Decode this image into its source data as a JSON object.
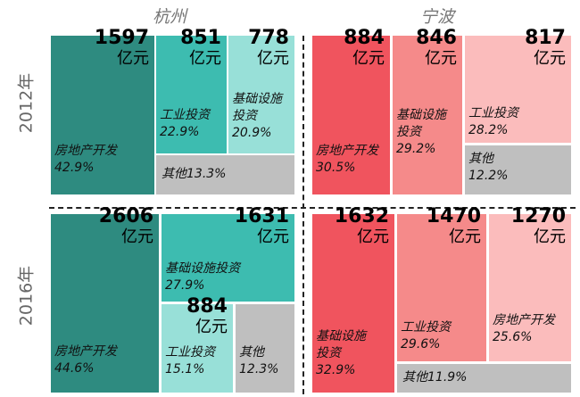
{
  "column_titles": [
    "杭州",
    "宁波"
  ],
  "row_titles": [
    "2012年",
    "2016年"
  ],
  "unit": "亿元",
  "chart_data": [
    {
      "type": "treemap",
      "categories": [
        "房地产开发",
        "工业投资",
        "基础设施投资",
        "其他"
      ],
      "values": [
        1597,
        851,
        778,
        null
      ],
      "shares": [
        42.9,
        22.9,
        20.9,
        13.3
      ],
      "share_labels": [
        "42.9%",
        "22.9%",
        "20.9%",
        "13.3%"
      ],
      "colors": [
        "#2e8b80",
        "#3dbcb0",
        "#98e0d8",
        "#bfbfbf"
      ]
    },
    {
      "type": "treemap",
      "categories": [
        "房地产开发",
        "基础设施投资",
        "工业投资",
        "其他"
      ],
      "values": [
        884,
        846,
        817,
        null
      ],
      "shares": [
        30.5,
        29.2,
        28.2,
        12.2
      ],
      "share_labels": [
        "30.5%",
        "29.2%",
        "28.2%",
        "12.2%"
      ],
      "colors": [
        "#f0545e",
        "#f58a8a",
        "#fbbcbc",
        "#bfbfbf"
      ]
    },
    {
      "type": "treemap",
      "categories": [
        "房地产开发",
        "基础设施投资",
        "工业投资",
        "其他"
      ],
      "values": [
        2606,
        1631,
        884,
        null
      ],
      "shares": [
        44.6,
        27.9,
        15.1,
        12.3
      ],
      "share_labels": [
        "44.6%",
        "27.9%",
        "15.1%",
        "12.3%"
      ],
      "colors": [
        "#2e8b80",
        "#3dbcb0",
        "#98e0d8",
        "#bfbfbf"
      ]
    },
    {
      "type": "treemap",
      "categories": [
        "基础设施投资",
        "工业投资",
        "房地产开发",
        "其他"
      ],
      "values": [
        1632,
        1470,
        1270,
        null
      ],
      "shares": [
        32.9,
        29.6,
        25.6,
        11.9
      ],
      "share_labels": [
        "32.9%",
        "29.6%",
        "25.6%",
        "11.9%"
      ],
      "colors": [
        "#f0545e",
        "#f58a8a",
        "#fbbcbc",
        "#bfbfbf"
      ]
    }
  ]
}
